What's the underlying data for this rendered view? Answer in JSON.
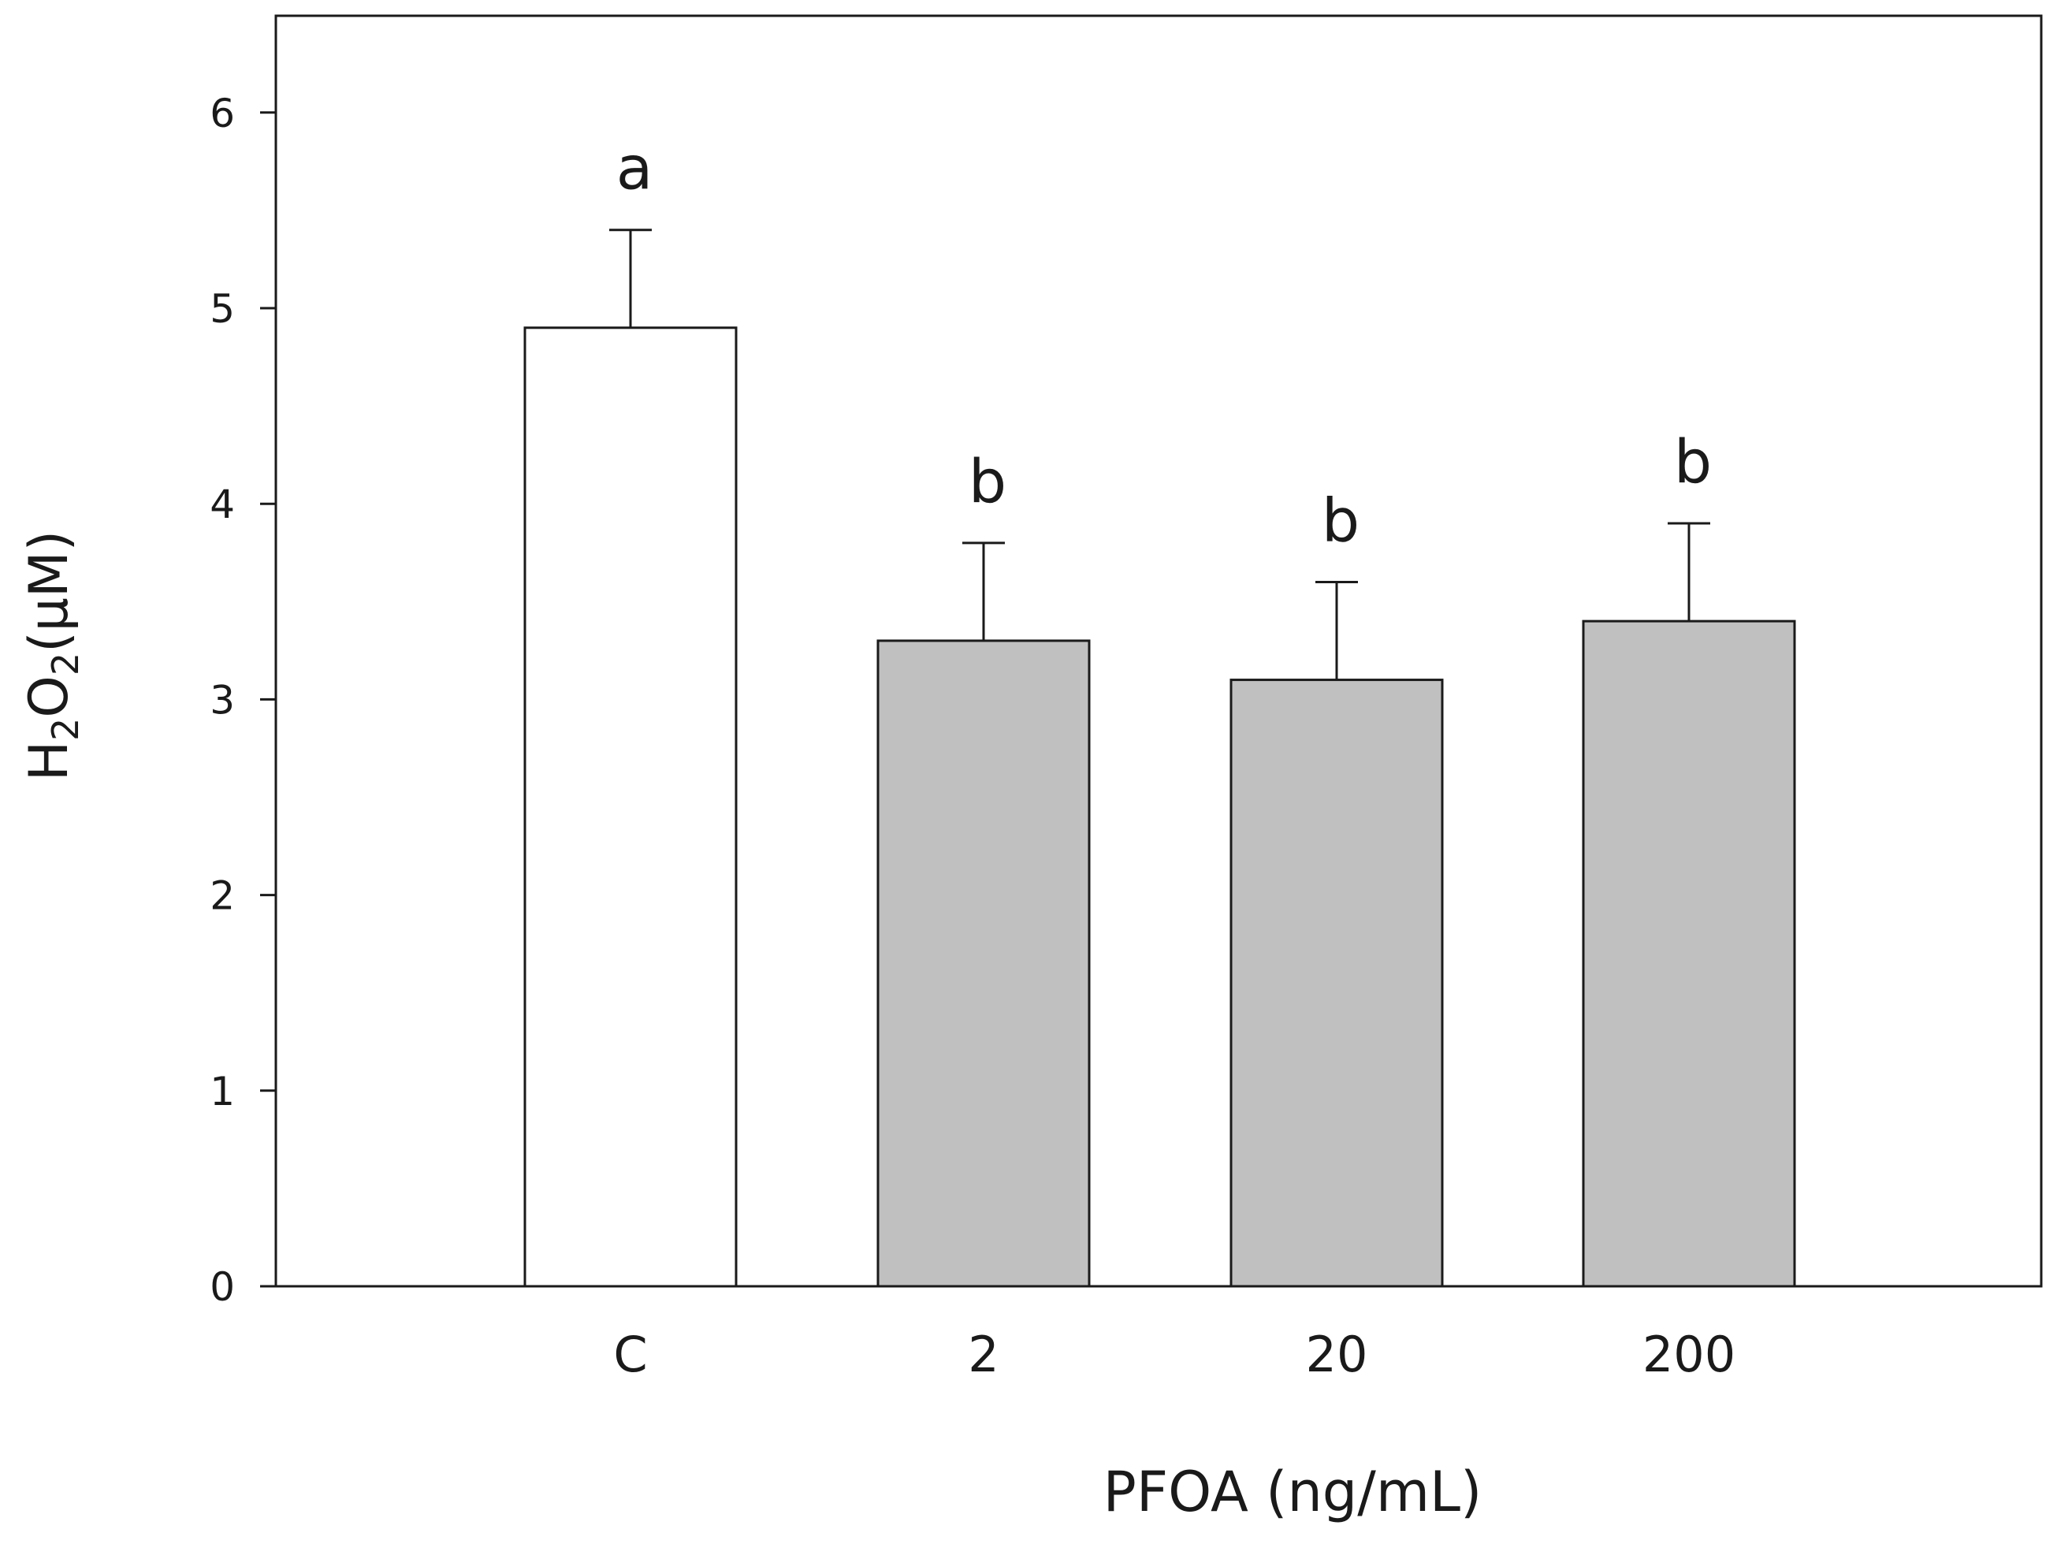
{
  "chart_data": {
    "type": "bar",
    "title": "",
    "xlabel": "PFOA (ng/mL)",
    "ylabel": {
      "base": "H",
      "sub1": "2",
      "mid": "O",
      "sub2": "2",
      "unit": "(μM)"
    },
    "categories": [
      "C",
      "2",
      "20",
      "200"
    ],
    "values": [
      4.9,
      3.3,
      3.1,
      3.4
    ],
    "errors": [
      0.5,
      0.5,
      0.5,
      0.5
    ],
    "significance": [
      "a",
      "b",
      "b",
      "b"
    ],
    "bar_colors": [
      "#ffffff",
      "#c0c0c0",
      "#c0c0c0",
      "#c0c0c0"
    ],
    "ylim": [
      0,
      6.5
    ],
    "yticks": [
      0,
      1,
      2,
      3,
      4,
      5,
      6
    ],
    "grid": false,
    "legend": "none"
  }
}
